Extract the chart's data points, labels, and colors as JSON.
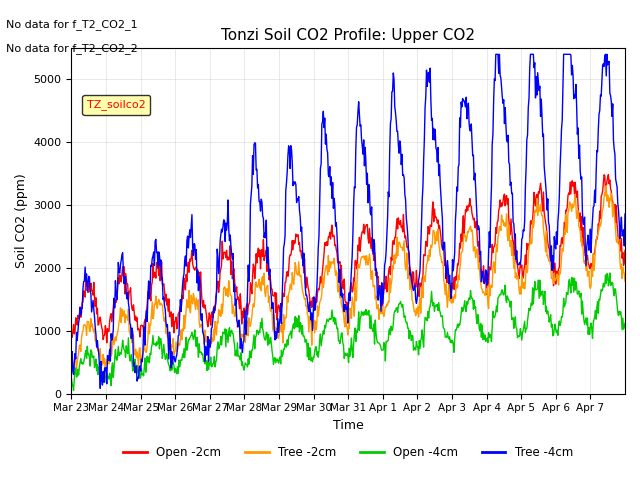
{
  "title": "Tonzi Soil CO2 Profile: Upper CO2",
  "ylabel": "Soil CO2 (ppm)",
  "xlabel": "Time",
  "annotations": [
    "No data for f_T2_CO2_1",
    "No data for f_T2_CO2_2"
  ],
  "legend_label": "TZ_soilco2",
  "ylim": [
    0,
    5500
  ],
  "legend_entries": [
    "Open -2cm",
    "Tree -2cm",
    "Open -4cm",
    "Tree -4cm"
  ],
  "line_colors": [
    "#ff0000",
    "#ff9900",
    "#00cc00",
    "#0000ff"
  ],
  "xtick_labels": [
    "Mar 23",
    "Mar 24",
    "Mar 25",
    "Mar 26",
    "Mar 27",
    "Mar 28",
    "Mar 29",
    "Mar 30",
    "Mar 31",
    "Apr 1",
    "Apr 2",
    "Apr 3",
    "Apr 4",
    "Apr 5",
    "Apr 6",
    "Apr 7"
  ],
  "num_days": 16
}
